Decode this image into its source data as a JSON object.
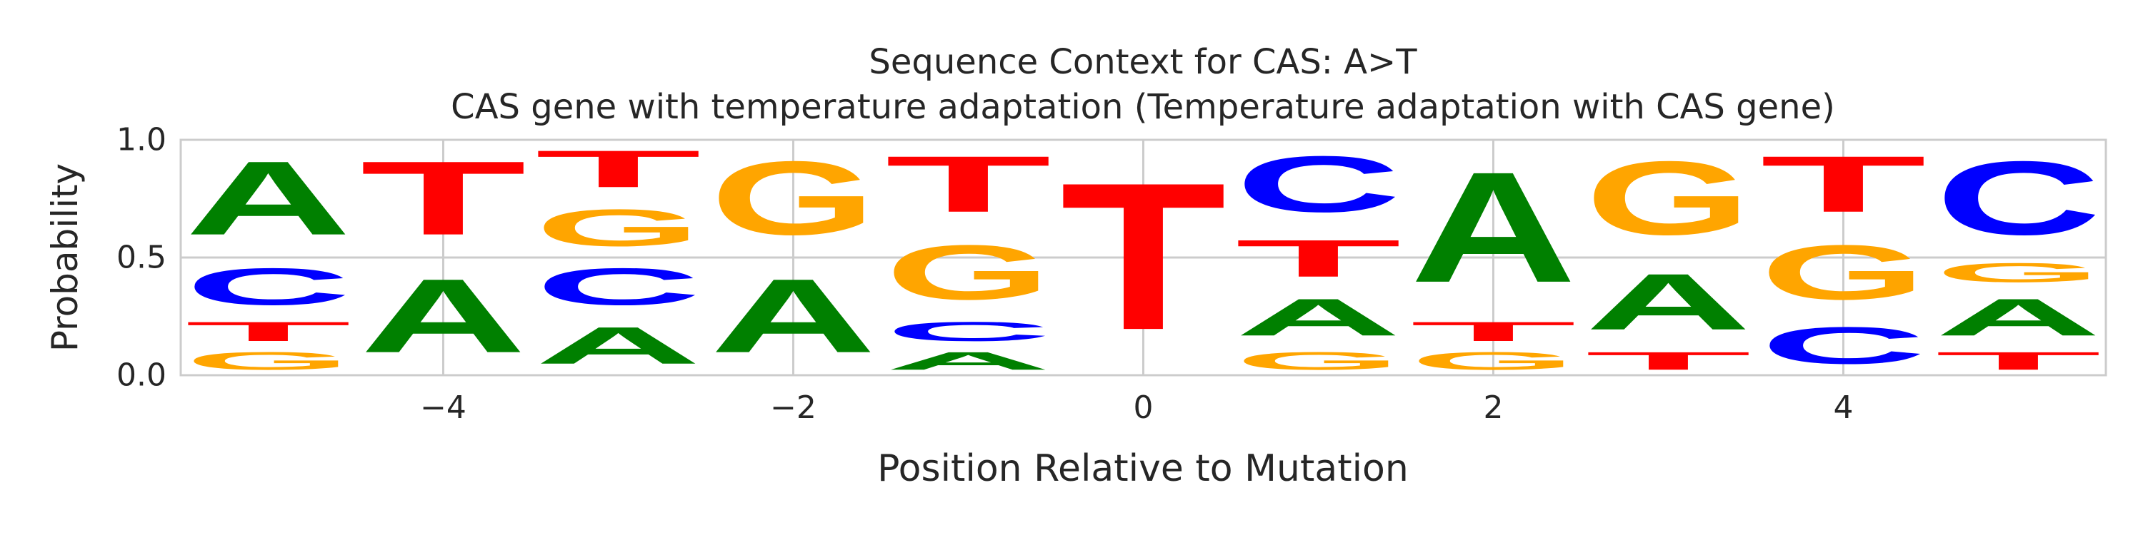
{
  "chart_data": {
    "type": "sequence-logo",
    "title": "Sequence Context for CAS: A>T",
    "subtitle": "CAS gene with temperature adaptation (Temperature adaptation with CAS gene)",
    "xlabel": "Position Relative to Mutation",
    "ylabel": "Probability",
    "xlim": [
      -5.5,
      5.5
    ],
    "ylim": [
      0,
      1
    ],
    "xticks": [
      -4,
      -2,
      0,
      2,
      4
    ],
    "xtick_labels": [
      "−4",
      "−2",
      "0",
      "2",
      "4"
    ],
    "yticks": [
      0,
      0.5,
      1
    ],
    "ytick_labels": [
      "0.0",
      "0.5",
      "1.0"
    ],
    "grid": true,
    "letter_colors": {
      "A": "#008000",
      "C": "#0000ff",
      "G": "#ffa500",
      "T": "#ff0000"
    },
    "positions": [
      {
        "position": -5,
        "stack": [
          {
            "base": "G",
            "p": 0.12
          },
          {
            "base": "T",
            "p": 0.13
          },
          {
            "base": "C",
            "p": 0.25
          },
          {
            "base": "A",
            "p": 0.5
          }
        ]
      },
      {
        "position": -4,
        "stack": [
          {
            "base": "A",
            "p": 0.5
          },
          {
            "base": "T",
            "p": 0.5
          }
        ]
      },
      {
        "position": -3,
        "stack": [
          {
            "base": "A",
            "p": 0.25
          },
          {
            "base": "C",
            "p": 0.25
          },
          {
            "base": "G",
            "p": 0.25
          },
          {
            "base": "T",
            "p": 0.25
          }
        ]
      },
      {
        "position": -2,
        "stack": [
          {
            "base": "A",
            "p": 0.5
          },
          {
            "base": "G",
            "p": 0.5
          }
        ]
      },
      {
        "position": -1,
        "stack": [
          {
            "base": "A",
            "p": 0.12
          },
          {
            "base": "C",
            "p": 0.13
          },
          {
            "base": "G",
            "p": 0.37
          },
          {
            "base": "T",
            "p": 0.38
          }
        ]
      },
      {
        "position": 0,
        "stack": [
          {
            "base": "T",
            "p": 1.0
          }
        ]
      },
      {
        "position": 1,
        "stack": [
          {
            "base": "G",
            "p": 0.12
          },
          {
            "base": "A",
            "p": 0.25
          },
          {
            "base": "T",
            "p": 0.25
          },
          {
            "base": "C",
            "p": 0.38
          }
        ]
      },
      {
        "position": 2,
        "stack": [
          {
            "base": "G",
            "p": 0.12
          },
          {
            "base": "T",
            "p": 0.13
          },
          {
            "base": "A",
            "p": 0.75
          }
        ]
      },
      {
        "position": 3,
        "stack": [
          {
            "base": "T",
            "p": 0.12
          },
          {
            "base": "A",
            "p": 0.38
          },
          {
            "base": "G",
            "p": 0.5
          }
        ]
      },
      {
        "position": 4,
        "stack": [
          {
            "base": "C",
            "p": 0.25
          },
          {
            "base": "G",
            "p": 0.37
          },
          {
            "base": "T",
            "p": 0.38
          }
        ]
      },
      {
        "position": 5,
        "stack": [
          {
            "base": "T",
            "p": 0.12
          },
          {
            "base": "A",
            "p": 0.25
          },
          {
            "base": "G",
            "p": 0.13
          },
          {
            "base": "C",
            "p": 0.5
          }
        ]
      }
    ]
  }
}
